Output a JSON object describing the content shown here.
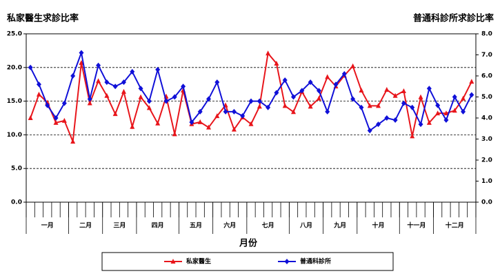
{
  "chart_data": {
    "type": "line",
    "y_label": "私家醫生求診比率",
    "y2_label": "普通科診所求診比率",
    "x_label": "月份",
    "categories": [
      null,
      null,
      null,
      null,
      null,
      null,
      null,
      null,
      null,
      null,
      null,
      null,
      null,
      null,
      null,
      null,
      null,
      null,
      null,
      null,
      null,
      null,
      null,
      null,
      null,
      null,
      null,
      null,
      null,
      null,
      null,
      null,
      null,
      null,
      null,
      null,
      null,
      null,
      null,
      null,
      null,
      null,
      null,
      null,
      null,
      null,
      null,
      null,
      null,
      null,
      null,
      null,
      null
    ],
    "x_groups": [
      {
        "label": "一月",
        "count": 5
      },
      {
        "label": "二月",
        "count": 4
      },
      {
        "label": "三月",
        "count": 4
      },
      {
        "label": "四月",
        "count": 5
      },
      {
        "label": "五月",
        "count": 4
      },
      {
        "label": "六月",
        "count": 4
      },
      {
        "label": "七月",
        "count": 5
      },
      {
        "label": "八月",
        "count": 4
      },
      {
        "label": "九月",
        "count": 4
      },
      {
        "label": "十月",
        "count": 5
      },
      {
        "label": "十一月",
        "count": 4
      },
      {
        "label": "十二月",
        "count": 5
      }
    ],
    "series": [
      {
        "name": "私家醫生",
        "color": "#e8151b",
        "marker": "triangle",
        "axis": "y",
        "values": [
          12.5,
          16.0,
          14.8,
          11.8,
          12.1,
          9.0,
          20.7,
          14.7,
          18.0,
          15.8,
          13.1,
          16.4,
          11.2,
          15.6,
          14.0,
          11.7,
          15.7,
          10.1,
          16.6,
          11.6,
          11.9,
          11.1,
          12.8,
          14.4,
          10.8,
          12.6,
          11.6,
          14.2,
          22.1,
          20.6,
          14.3,
          13.4,
          16.4,
          14.2,
          15.4,
          18.6,
          17.2,
          18.8,
          20.2,
          16.6,
          14.3,
          14.3,
          16.7,
          15.8,
          16.5,
          9.8,
          15.6,
          11.8,
          13.2,
          13.2,
          13.6,
          15.4,
          17.9
        ]
      },
      {
        "name": "普通科診所",
        "color": "#1010d8",
        "marker": "diamond",
        "axis": "y2",
        "values": [
          6.4,
          5.6,
          4.6,
          4.0,
          4.7,
          6.0,
          7.1,
          4.9,
          6.5,
          5.7,
          5.5,
          5.7,
          6.2,
          5.4,
          4.8,
          6.3,
          4.8,
          5.0,
          5.5,
          3.8,
          4.3,
          4.9,
          5.7,
          4.3,
          4.3,
          4.1,
          4.8,
          4.8,
          4.5,
          5.2,
          5.8,
          5.0,
          5.3,
          5.7,
          5.3,
          4.3,
          5.6,
          6.1,
          4.9,
          4.5,
          3.4,
          3.7,
          4.0,
          3.9,
          4.7,
          4.5,
          3.7,
          5.4,
          4.6,
          3.9,
          5.0,
          4.3,
          5.1
        ]
      }
    ],
    "ylim": [
      0,
      25
    ],
    "yticks": [
      {
        "value": 0,
        "label": "0.0"
      },
      {
        "value": 5,
        "label": "5.0"
      },
      {
        "value": 10,
        "label": "10.0"
      },
      {
        "value": 15,
        "label": "15.0"
      },
      {
        "value": 20,
        "label": "20.0"
      },
      {
        "value": 25,
        "label": "25.0"
      }
    ],
    "y2lim": [
      0,
      8
    ],
    "y2ticks": [
      {
        "value": 0,
        "label": "0.0"
      },
      {
        "value": 1,
        "label": "1.0"
      },
      {
        "value": 2,
        "label": "2.0"
      },
      {
        "value": 3,
        "label": "3.0"
      },
      {
        "value": 4,
        "label": "4.0"
      },
      {
        "value": 5,
        "label": "5.0"
      },
      {
        "value": 6,
        "label": "6.0"
      },
      {
        "value": 7,
        "label": "7.0"
      },
      {
        "value": 8,
        "label": "8.0"
      }
    ],
    "grid": true
  }
}
